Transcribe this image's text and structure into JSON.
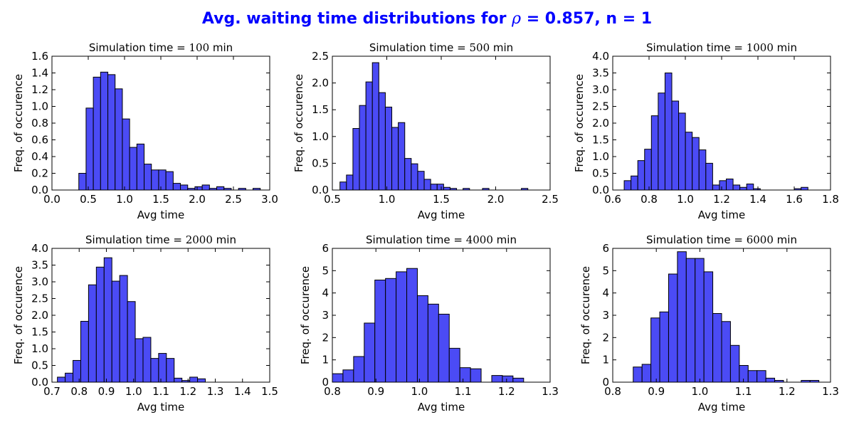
{
  "figure": {
    "title_prefix": "Avg. waiting time distributions for ",
    "title_symbol": "ρ",
    "title_suffix": " = 0.857, n = 1",
    "title_color": "#0000ff"
  },
  "colors": {
    "bar_fill": "#4b4bf5",
    "bar_edge": "#000000"
  },
  "chart_data": [
    {
      "type": "bar",
      "title_prefix": "Simulation time = ",
      "title_value": "100",
      "title_unit": " min",
      "xlabel": "Avg time",
      "ylabel": "Freq. of occurence",
      "xlim": [
        0,
        3
      ],
      "ylim": [
        0,
        1.6
      ],
      "xticks": [
        "0.0",
        "0.5",
        "1.0",
        "1.5",
        "2.0",
        "2.5",
        "3.0"
      ],
      "yticks": [
        "0.0",
        "0.2",
        "0.4",
        "0.6",
        "0.8",
        "1.0",
        "1.2",
        "1.4",
        "1.6"
      ],
      "bin_start": 0.37,
      "bin_width": 0.1,
      "values": [
        0.2,
        0.98,
        1.35,
        1.41,
        1.38,
        1.21,
        0.85,
        0.51,
        0.55,
        0.31,
        0.24,
        0.24,
        0.22,
        0.08,
        0.06,
        0.02,
        0.04,
        0.06,
        0.02,
        0.04,
        0.02,
        0,
        0.02,
        0,
        0.02
      ]
    },
    {
      "type": "bar",
      "title_prefix": "Simulation time = ",
      "title_value": "500",
      "title_unit": " min",
      "xlabel": "Avg time",
      "ylabel": "Freq. of occurence",
      "xlim": [
        0.5,
        2.5
      ],
      "ylim": [
        0,
        2.5
      ],
      "xticks": [
        "0.5",
        "1.0",
        "1.5",
        "2.0",
        "2.5"
      ],
      "yticks": [
        "0.0",
        "0.5",
        "1.0",
        "1.5",
        "2.0",
        "2.5"
      ],
      "bin_start": 0.57,
      "bin_width": 0.0595,
      "values": [
        0.15,
        0.28,
        1.15,
        1.58,
        2.02,
        2.38,
        1.82,
        1.55,
        1.17,
        1.26,
        0.59,
        0.49,
        0.35,
        0.2,
        0.11,
        0.11,
        0.05,
        0.03,
        0,
        0.03,
        0,
        0,
        0.03,
        0,
        0,
        0,
        0,
        0,
        0.03
      ]
    },
    {
      "type": "bar",
      "title_prefix": "Simulation time = ",
      "title_value": "1000",
      "title_unit": " min",
      "xlabel": "Avg time",
      "ylabel": "Freq. of occurence",
      "xlim": [
        0.6,
        1.8
      ],
      "ylim": [
        0,
        4.0
      ],
      "xticks": [
        "0.6",
        "0.8",
        "1.0",
        "1.2",
        "1.4",
        "1.6",
        "1.8"
      ],
      "yticks": [
        "0.0",
        "0.5",
        "1.0",
        "1.5",
        "2.0",
        "2.5",
        "3.0",
        "3.5",
        "4.0"
      ],
      "bin_start": 0.663,
      "bin_width": 0.0375,
      "values": [
        0.28,
        0.42,
        0.88,
        1.22,
        2.22,
        2.9,
        3.5,
        2.66,
        2.3,
        1.73,
        1.57,
        1.2,
        0.8,
        0.15,
        0.28,
        0.33,
        0.15,
        0.08,
        0.18,
        0.04,
        0,
        0,
        0,
        0,
        0,
        0.04,
        0.08
      ]
    },
    {
      "type": "bar",
      "title_prefix": "Simulation time = ",
      "title_value": "2000",
      "title_unit": " min",
      "xlabel": "Avg time",
      "ylabel": "Freq. of occurence",
      "xlim": [
        0.7,
        1.5
      ],
      "ylim": [
        0,
        4.0
      ],
      "xticks": [
        "0.7",
        "0.8",
        "0.9",
        "1.0",
        "1.1",
        "1.2",
        "1.3",
        "1.4",
        "1.5"
      ],
      "yticks": [
        "0.0",
        "0.5",
        "1.0",
        "1.5",
        "2.0",
        "2.5",
        "3.0",
        "3.5",
        "4.0"
      ],
      "bin_start": 0.72,
      "bin_width": 0.0286,
      "values": [
        0.15,
        0.27,
        0.65,
        1.82,
        2.91,
        3.44,
        3.72,
        3.02,
        3.19,
        2.41,
        1.3,
        1.34,
        0.71,
        0.86,
        0.71,
        0.12,
        0.05,
        0.15,
        0.1
      ]
    },
    {
      "type": "bar",
      "title_prefix": "Simulation time = ",
      "title_value": "4000",
      "title_unit": " min",
      "xlabel": "Avg time",
      "ylabel": "Freq. of occurence",
      "xlim": [
        0.8,
        1.3
      ],
      "ylim": [
        0,
        6
      ],
      "xticks": [
        "0.8",
        "0.9",
        "1.0",
        "1.1",
        "1.2",
        "1.3"
      ],
      "yticks": [
        "0",
        "1",
        "2",
        "3",
        "4",
        "5",
        "6"
      ],
      "bin_start": 0.8,
      "bin_width": 0.0244,
      "values": [
        0.38,
        0.55,
        1.15,
        2.65,
        4.58,
        4.65,
        4.95,
        5.1,
        3.88,
        3.5,
        3.05,
        1.52,
        0.65,
        0.6,
        0,
        0.3,
        0.28,
        0.18
      ]
    },
    {
      "type": "bar",
      "title_prefix": "Simulation time = ",
      "title_value": "6000",
      "title_unit": " min",
      "xlabel": "Avg time",
      "ylabel": "Freq. of occurence",
      "xlim": [
        0.8,
        1.3
      ],
      "ylim": [
        0,
        6
      ],
      "xticks": [
        "0.8",
        "0.9",
        "1.0",
        "1.1",
        "1.2",
        "1.3"
      ],
      "yticks": [
        "0",
        "1",
        "2",
        "3",
        "4",
        "5",
        "6"
      ],
      "bin_start": 0.847,
      "bin_width": 0.0203,
      "values": [
        0.68,
        0.8,
        2.88,
        3.15,
        4.85,
        5.85,
        5.55,
        5.55,
        4.95,
        3.08,
        2.72,
        1.65,
        0.75,
        0.52,
        0.52,
        0.18,
        0.08,
        0,
        0,
        0.08,
        0.08
      ]
    }
  ]
}
